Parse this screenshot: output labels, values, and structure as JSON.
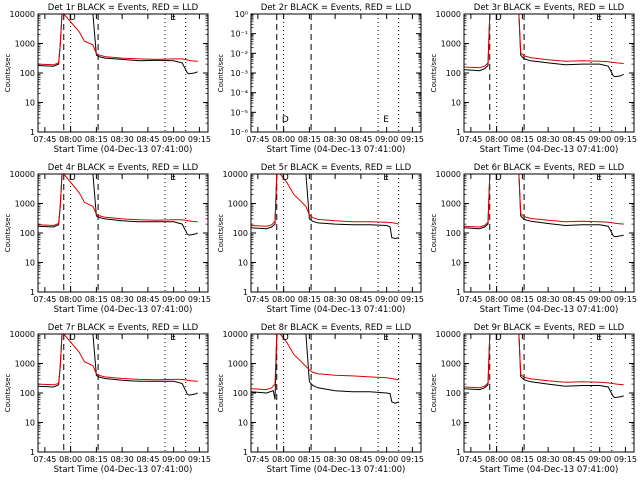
{
  "chart_data": [
    {
      "type": "line",
      "panel": "Det 1r",
      "title": "Det 1r BLACK = Events, RED = LLD",
      "ylabel": "Counts/sec",
      "xlabel": "Start Time (04-Dec-13 07:41:00)",
      "x_ticks": [
        "07:45",
        "08:00",
        "08:15",
        "08:30",
        "08:45",
        "09:00",
        "09:15"
      ],
      "y_ticks": [
        "1",
        "10",
        "100",
        "1000",
        "10000"
      ],
      "yscale": "log",
      "ylim": [
        1,
        10000
      ],
      "xlim": [
        "07:41",
        "09:20"
      ],
      "markers": [
        "D",
        "E"
      ],
      "series": [
        {
          "name": "Events",
          "color": "#000000",
          "x": [
            "07:41",
            "07:50",
            "07:53",
            "07:54",
            "07:55",
            "07:56",
            "08:05",
            "08:08",
            "08:13",
            "08:15",
            "08:17",
            "08:20",
            "08:30",
            "08:40",
            "08:50",
            "09:00",
            "09:05",
            "09:08",
            "09:09",
            "09:12",
            "09:14"
          ],
          "y": [
            180,
            170,
            200,
            900,
            10000,
            10000,
            10000,
            10000,
            10000,
            400,
            350,
            320,
            290,
            260,
            270,
            260,
            220,
            100,
            95,
            100,
            110
          ]
        },
        {
          "name": "LLD",
          "color": "#dd0000",
          "x": [
            "07:41",
            "07:50",
            "07:53",
            "07:54",
            "07:55",
            "07:56",
            "08:05",
            "08:08",
            "08:13",
            "08:15",
            "08:17",
            "08:20",
            "08:30",
            "08:40",
            "08:50",
            "09:00",
            "09:05",
            "09:10",
            "09:14"
          ],
          "y": [
            200,
            190,
            220,
            1000,
            10000,
            10000,
            2500,
            1200,
            900,
            450,
            400,
            360,
            320,
            300,
            290,
            300,
            300,
            260,
            250
          ]
        }
      ]
    },
    {
      "type": "line",
      "panel": "Det 2r",
      "title": "Det 2r BLACK = Events, RED = LLD",
      "ylabel": "Counts/sec",
      "xlabel": "Start Time (04-Dec-13 07:41:00)",
      "x_ticks": [
        "07:45",
        "08:00",
        "08:15",
        "08:30",
        "08:45",
        "09:00",
        "09:15"
      ],
      "y_ticks": [
        "10⁻⁶",
        "10⁻⁵",
        "10⁻⁴",
        "10⁻³",
        "10⁻²",
        "10⁻¹",
        "10⁰"
      ],
      "yscale": "log",
      "ylim": [
        1e-06,
        1
      ],
      "xlim": [
        "07:41",
        "09:20"
      ],
      "markers": [
        "D",
        "E"
      ],
      "series": []
    },
    {
      "type": "line",
      "panel": "Det 3r",
      "title": "Det 3r BLACK = Events, RED = LLD",
      "ylabel": "Counts/sec",
      "xlabel": "Start Time (04-Dec-13 07:41:00)",
      "x_ticks": [
        "07:45",
        "08:00",
        "08:15",
        "08:30",
        "08:45",
        "09:00",
        "09:15"
      ],
      "y_ticks": [
        "1",
        "10",
        "100",
        "1000",
        "10000"
      ],
      "yscale": "log",
      "ylim": [
        1,
        10000
      ],
      "xlim": [
        "07:41",
        "09:20"
      ],
      "markers": [
        "D",
        "E"
      ],
      "series": [
        {
          "name": "Events",
          "color": "#000000",
          "x": [
            "07:41",
            "07:50",
            "07:53",
            "07:55",
            "07:56",
            "08:05",
            "08:13",
            "08:14",
            "08:16",
            "08:20",
            "08:30",
            "08:40",
            "08:50",
            "09:00",
            "09:05",
            "09:08",
            "09:09",
            "09:12",
            "09:14"
          ],
          "y": [
            130,
            120,
            140,
            180,
            10000,
            10000,
            10000,
            400,
            300,
            260,
            220,
            190,
            200,
            200,
            170,
            80,
            75,
            80,
            90
          ]
        },
        {
          "name": "LLD",
          "color": "#dd0000",
          "x": [
            "07:41",
            "07:50",
            "07:53",
            "07:55",
            "07:56",
            "08:05",
            "08:13",
            "08:14",
            "08:16",
            "08:20",
            "08:30",
            "08:40",
            "08:50",
            "09:00",
            "09:05",
            "09:10",
            "09:14"
          ],
          "y": [
            160,
            150,
            170,
            220,
            10000,
            10000,
            10000,
            480,
            380,
            330,
            280,
            250,
            260,
            250,
            240,
            220,
            210
          ]
        }
      ]
    },
    {
      "type": "line",
      "panel": "Det 4r",
      "title": "Det 4r BLACK = Events, RED = LLD",
      "ylabel": "Counts/sec",
      "xlabel": "Start Time (04-Dec-13 07:41:00)",
      "x_ticks": [
        "07:45",
        "08:00",
        "08:15",
        "08:30",
        "08:45",
        "09:00",
        "09:15"
      ],
      "y_ticks": [
        "1",
        "10",
        "100",
        "1000",
        "10000"
      ],
      "yscale": "log",
      "ylim": [
        1,
        10000
      ],
      "xlim": [
        "07:41",
        "09:20"
      ],
      "markers": [
        "D",
        "E"
      ],
      "series": [
        {
          "name": "Events",
          "color": "#000000",
          "x": [
            "07:41",
            "07:50",
            "07:53",
            "07:54",
            "07:55",
            "07:56",
            "08:05",
            "08:13",
            "08:15",
            "08:17",
            "08:20",
            "08:30",
            "08:40",
            "08:50",
            "09:00",
            "09:05",
            "09:08",
            "09:09",
            "09:12",
            "09:14"
          ],
          "y": [
            170,
            160,
            190,
            800,
            10000,
            10000,
            10000,
            10000,
            380,
            330,
            300,
            260,
            240,
            240,
            240,
            200,
            90,
            85,
            90,
            100
          ]
        },
        {
          "name": "LLD",
          "color": "#dd0000",
          "x": [
            "07:41",
            "07:50",
            "07:53",
            "07:54",
            "07:55",
            "07:56",
            "08:05",
            "08:08",
            "08:13",
            "08:15",
            "08:17",
            "08:20",
            "08:30",
            "08:40",
            "08:50",
            "09:00",
            "09:05",
            "09:10",
            "09:14"
          ],
          "y": [
            190,
            180,
            210,
            900,
            10000,
            10000,
            2300,
            1100,
            800,
            430,
            380,
            340,
            300,
            280,
            270,
            280,
            280,
            250,
            240
          ]
        }
      ]
    },
    {
      "type": "line",
      "panel": "Det 5r",
      "title": "Det 5r BLACK = Events, RED = LLD",
      "ylabel": "Counts/sec",
      "xlabel": "Start Time (04-Dec-13 07:41:00)",
      "x_ticks": [
        "07:45",
        "08:00",
        "08:15",
        "08:30",
        "08:45",
        "09:00",
        "09:15"
      ],
      "y_ticks": [
        "1",
        "10",
        "100",
        "1000",
        "10000"
      ],
      "yscale": "log",
      "ylim": [
        1,
        10000
      ],
      "xlim": [
        "07:41",
        "09:20"
      ],
      "markers": [
        "D",
        "E"
      ],
      "series": [
        {
          "name": "Events",
          "color": "#000000",
          "x": [
            "07:41",
            "07:50",
            "07:53",
            "07:55",
            "07:56",
            "08:05",
            "08:13",
            "08:15",
            "08:17",
            "08:20",
            "08:30",
            "08:40",
            "08:50",
            "09:00",
            "09:02",
            "09:03",
            "09:05",
            "09:07"
          ],
          "y": [
            150,
            140,
            160,
            200,
            10000,
            10000,
            10000,
            300,
            250,
            220,
            200,
            190,
            190,
            180,
            160,
            70,
            65,
            70
          ]
        },
        {
          "name": "LLD",
          "color": "#dd0000",
          "x": [
            "07:41",
            "07:50",
            "07:53",
            "07:55",
            "07:56",
            "07:58",
            "08:02",
            "08:06",
            "08:10",
            "08:13",
            "08:15",
            "08:17",
            "08:20",
            "08:30",
            "08:40",
            "08:50",
            "09:00",
            "09:04",
            "09:07"
          ],
          "y": [
            180,
            170,
            190,
            250,
            10000,
            10000,
            5000,
            2000,
            1200,
            800,
            400,
            330,
            290,
            260,
            240,
            240,
            230,
            220,
            200
          ]
        }
      ]
    },
    {
      "type": "line",
      "panel": "Det 6r",
      "title": "Det 6r BLACK = Events, RED = LLD",
      "ylabel": "Counts/sec",
      "xlabel": "Start Time (04-Dec-13 07:41:00)",
      "x_ticks": [
        "07:45",
        "08:00",
        "08:15",
        "08:30",
        "08:45",
        "09:00",
        "09:15"
      ],
      "y_ticks": [
        "1",
        "10",
        "100",
        "1000",
        "10000"
      ],
      "yscale": "log",
      "ylim": [
        1,
        10000
      ],
      "xlim": [
        "07:41",
        "09:20"
      ],
      "markers": [
        "D",
        "E"
      ],
      "series": [
        {
          "name": "Events",
          "color": "#000000",
          "x": [
            "07:41",
            "07:50",
            "07:53",
            "07:55",
            "07:56",
            "08:05",
            "08:13",
            "08:14",
            "08:16",
            "08:20",
            "08:30",
            "08:40",
            "08:50",
            "09:00",
            "09:05",
            "09:08",
            "09:09",
            "09:12",
            "09:14"
          ],
          "y": [
            150,
            140,
            160,
            200,
            10000,
            10000,
            10000,
            380,
            290,
            250,
            210,
            180,
            190,
            190,
            170,
            80,
            75,
            80,
            85
          ]
        },
        {
          "name": "LLD",
          "color": "#dd0000",
          "x": [
            "07:41",
            "07:50",
            "07:53",
            "07:55",
            "07:56",
            "08:05",
            "08:13",
            "08:14",
            "08:16",
            "08:20",
            "08:30",
            "08:40",
            "08:50",
            "09:00",
            "09:05",
            "09:10",
            "09:14"
          ],
          "y": [
            170,
            160,
            180,
            230,
            10000,
            10000,
            10000,
            450,
            360,
            310,
            270,
            240,
            250,
            240,
            230,
            210,
            200
          ]
        }
      ]
    },
    {
      "type": "line",
      "panel": "Det 7r",
      "title": "Det 7r BLACK = Events, RED = LLD",
      "ylabel": "Counts/sec",
      "xlabel": "Start Time (04-Dec-13 07:41:00)",
      "x_ticks": [
        "07:45",
        "08:00",
        "08:15",
        "08:30",
        "08:45",
        "09:00",
        "09:15"
      ],
      "y_ticks": [
        "1",
        "10",
        "100",
        "1000",
        "10000"
      ],
      "yscale": "log",
      "ylim": [
        1,
        10000
      ],
      "xlim": [
        "07:41",
        "09:20"
      ],
      "markers": [
        "D",
        "E"
      ],
      "series": [
        {
          "name": "Events",
          "color": "#000000",
          "x": [
            "07:41",
            "07:50",
            "07:53",
            "07:54",
            "07:55",
            "07:56",
            "08:05",
            "08:13",
            "08:15",
            "08:17",
            "08:20",
            "08:30",
            "08:40",
            "08:50",
            "09:00",
            "09:05",
            "09:08",
            "09:09",
            "09:12",
            "09:14"
          ],
          "y": [
            170,
            160,
            190,
            800,
            10000,
            10000,
            10000,
            10000,
            390,
            340,
            310,
            270,
            250,
            250,
            250,
            210,
            90,
            85,
            90,
            100
          ]
        },
        {
          "name": "LLD",
          "color": "#dd0000",
          "x": [
            "07:41",
            "07:50",
            "07:53",
            "07:54",
            "07:55",
            "07:56",
            "08:05",
            "08:08",
            "08:13",
            "08:15",
            "08:17",
            "08:20",
            "08:30",
            "08:40",
            "08:50",
            "09:00",
            "09:05",
            "09:10",
            "09:14"
          ],
          "y": [
            200,
            190,
            210,
            900,
            10000,
            10000,
            2400,
            1150,
            850,
            440,
            390,
            350,
            310,
            290,
            280,
            290,
            290,
            260,
            250
          ]
        }
      ]
    },
    {
      "type": "line",
      "panel": "Det 8r",
      "title": "Det 8r BLACK = Events, RED = LLD",
      "ylabel": "Counts/sec",
      "xlabel": "Start Time (04-Dec-13 07:41:00)",
      "x_ticks": [
        "07:45",
        "08:00",
        "08:15",
        "08:30",
        "08:45",
        "09:00",
        "09:15"
      ],
      "y_ticks": [
        "1",
        "10",
        "100",
        "1000",
        "10000"
      ],
      "yscale": "log",
      "ylim": [
        1,
        10000
      ],
      "xlim": [
        "07:41",
        "09:20"
      ],
      "markers": [
        "D",
        "E"
      ],
      "series": [
        {
          "name": "Events",
          "color": "#000000",
          "x": [
            "07:41",
            "07:50",
            "07:54",
            "07:55",
            "07:56",
            "08:05",
            "08:13",
            "08:15",
            "08:17",
            "08:20",
            "08:30",
            "08:40",
            "08:50",
            "09:00",
            "09:02",
            "09:03",
            "09:05",
            "09:07"
          ],
          "y": [
            110,
            100,
            120,
            60,
            10000,
            10000,
            10000,
            240,
            180,
            150,
            120,
            110,
            110,
            100,
            95,
            50,
            45,
            50
          ]
        },
        {
          "name": "LLD",
          "color": "#dd0000",
          "x": [
            "07:41",
            "07:50",
            "07:53",
            "07:55",
            "07:56",
            "07:58",
            "08:02",
            "08:06",
            "08:10",
            "08:13",
            "08:15",
            "08:17",
            "08:20",
            "08:30",
            "08:40",
            "08:50",
            "09:00",
            "09:04",
            "09:07"
          ],
          "y": [
            140,
            130,
            150,
            200,
            10000,
            10000,
            5000,
            2000,
            1200,
            800,
            600,
            500,
            450,
            400,
            380,
            350,
            330,
            300,
            280
          ]
        }
      ]
    },
    {
      "type": "line",
      "panel": "Det 9r",
      "title": "Det 9r BLACK = Events, RED = LLD",
      "ylabel": "Counts/sec",
      "xlabel": "Start Time (04-Dec-13 07:41:00)",
      "x_ticks": [
        "07:45",
        "08:00",
        "08:15",
        "08:30",
        "08:45",
        "09:00",
        "09:15"
      ],
      "y_ticks": [
        "1",
        "10",
        "100",
        "1000",
        "10000"
      ],
      "yscale": "log",
      "ylim": [
        1,
        10000
      ],
      "xlim": [
        "07:41",
        "09:20"
      ],
      "markers": [
        "D",
        "E"
      ],
      "series": [
        {
          "name": "Events",
          "color": "#000000",
          "x": [
            "07:41",
            "07:50",
            "07:53",
            "07:55",
            "07:56",
            "08:05",
            "08:13",
            "08:14",
            "08:16",
            "08:20",
            "08:30",
            "08:40",
            "08:50",
            "09:00",
            "09:05",
            "09:08",
            "09:09",
            "09:12",
            "09:14"
          ],
          "y": [
            140,
            130,
            150,
            190,
            10000,
            10000,
            10000,
            360,
            280,
            240,
            200,
            170,
            180,
            180,
            160,
            75,
            70,
            75,
            80
          ]
        },
        {
          "name": "LLD",
          "color": "#dd0000",
          "x": [
            "07:41",
            "07:50",
            "07:53",
            "07:55",
            "07:56",
            "08:05",
            "08:13",
            "08:14",
            "08:16",
            "08:20",
            "08:30",
            "08:40",
            "08:50",
            "09:00",
            "09:05",
            "09:10",
            "09:14"
          ],
          "y": [
            160,
            150,
            170,
            220,
            10000,
            10000,
            10000,
            430,
            340,
            300,
            260,
            230,
            240,
            230,
            220,
            200,
            190
          ]
        }
      ]
    }
  ]
}
